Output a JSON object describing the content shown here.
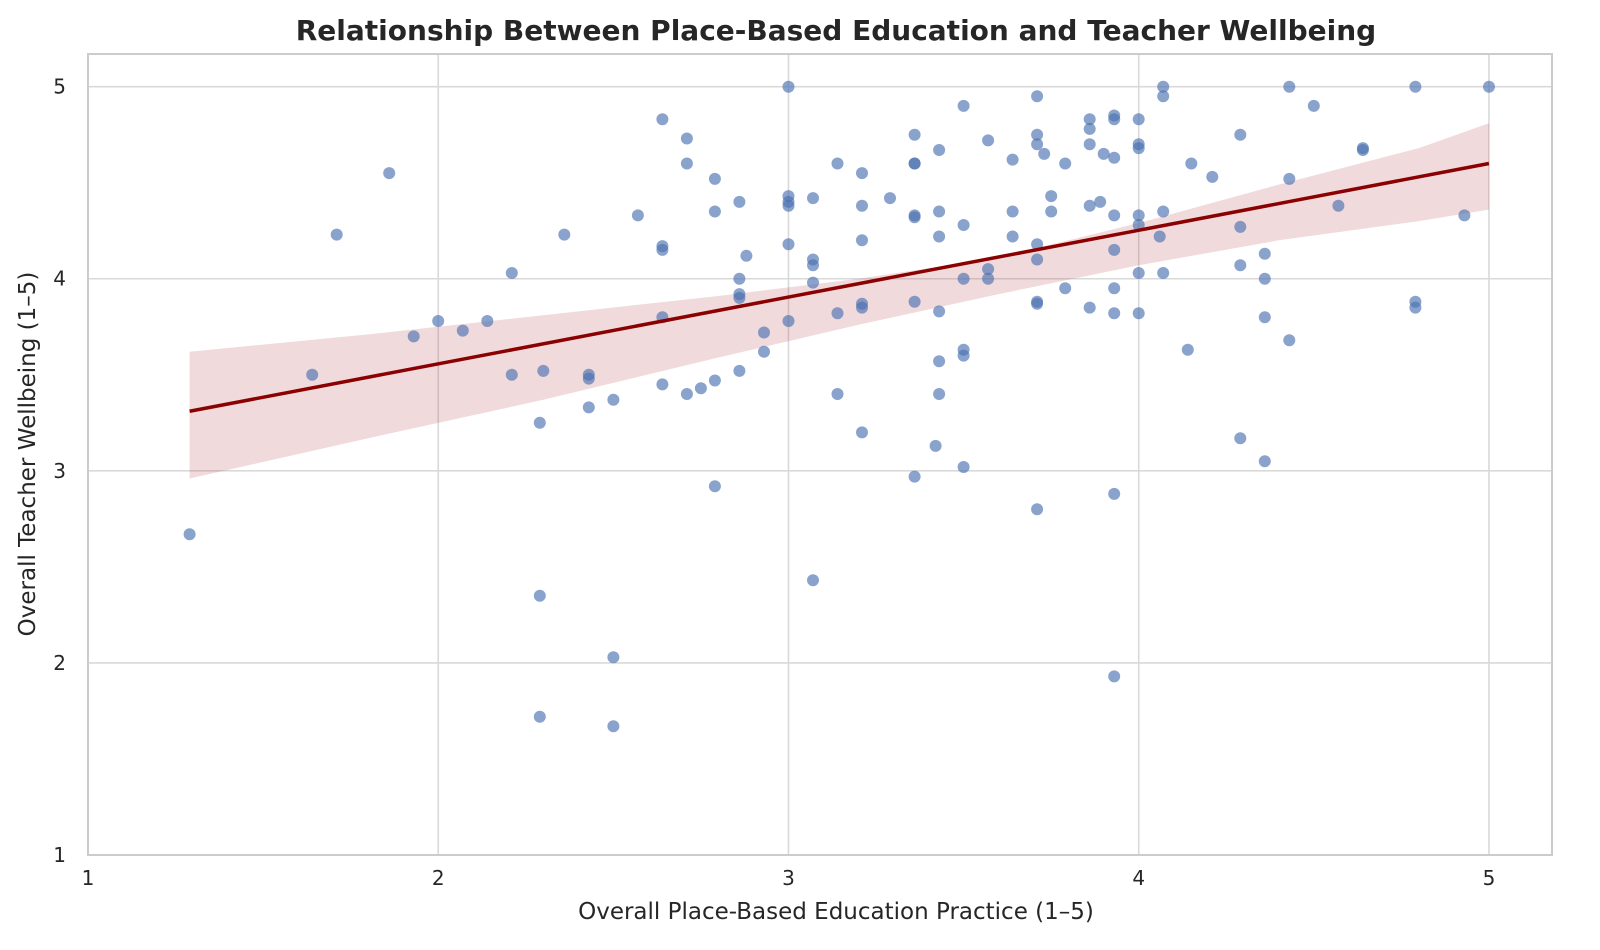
{
  "chart_data": {
    "type": "scatter",
    "title": "Relationship Between Place-Based Education and Teacher Wellbeing",
    "xlabel": "Overall Place-Based Education Practice (1–5)",
    "ylabel": "Overall Teacher Wellbeing (1–5)",
    "xlim": [
      1,
      5.18
    ],
    "ylim": [
      1,
      5.17
    ],
    "xticks": [
      "1",
      "2",
      "3",
      "4",
      "5"
    ],
    "yticks": [
      "1",
      "2",
      "3",
      "4",
      "5"
    ],
    "grid": true,
    "point_color": "#4c72b0",
    "line_color": "#8b0000",
    "band_color": "#b2474f",
    "points": [
      [
        1.29,
        2.67
      ],
      [
        1.64,
        3.5
      ],
      [
        1.71,
        4.23
      ],
      [
        1.86,
        4.55
      ],
      [
        1.93,
        3.7
      ],
      [
        2.0,
        3.78
      ],
      [
        2.07,
        3.73
      ],
      [
        2.14,
        3.78
      ],
      [
        2.21,
        4.03
      ],
      [
        2.21,
        3.5
      ],
      [
        2.29,
        3.25
      ],
      [
        2.29,
        2.35
      ],
      [
        2.29,
        1.72
      ],
      [
        2.3,
        3.52
      ],
      [
        2.36,
        4.23
      ],
      [
        2.43,
        3.5
      ],
      [
        2.43,
        3.48
      ],
      [
        2.43,
        3.33
      ],
      [
        2.5,
        3.37
      ],
      [
        2.5,
        2.03
      ],
      [
        2.5,
        1.67
      ],
      [
        2.57,
        4.33
      ],
      [
        2.64,
        4.83
      ],
      [
        2.64,
        4.17
      ],
      [
        2.64,
        4.15
      ],
      [
        2.64,
        3.8
      ],
      [
        2.64,
        3.45
      ],
      [
        2.71,
        4.73
      ],
      [
        2.71,
        4.6
      ],
      [
        2.71,
        3.4
      ],
      [
        2.75,
        3.43
      ],
      [
        2.79,
        4.52
      ],
      [
        2.79,
        4.35
      ],
      [
        2.79,
        3.47
      ],
      [
        2.79,
        2.92
      ],
      [
        2.86,
        4.4
      ],
      [
        2.86,
        4.0
      ],
      [
        2.86,
        3.92
      ],
      [
        2.86,
        3.9
      ],
      [
        2.86,
        3.52
      ],
      [
        2.88,
        4.12
      ],
      [
        2.93,
        3.72
      ],
      [
        2.93,
        3.62
      ],
      [
        3.0,
        5.0
      ],
      [
        3.0,
        4.43
      ],
      [
        3.0,
        4.4
      ],
      [
        3.0,
        4.38
      ],
      [
        3.0,
        4.18
      ],
      [
        3.0,
        3.78
      ],
      [
        3.07,
        4.42
      ],
      [
        3.07,
        4.1
      ],
      [
        3.07,
        4.07
      ],
      [
        3.07,
        3.98
      ],
      [
        3.07,
        2.43
      ],
      [
        3.14,
        4.6
      ],
      [
        3.14,
        3.82
      ],
      [
        3.14,
        3.4
      ],
      [
        3.21,
        4.55
      ],
      [
        3.21,
        4.38
      ],
      [
        3.21,
        4.2
      ],
      [
        3.21,
        3.87
      ],
      [
        3.21,
        3.85
      ],
      [
        3.21,
        3.2
      ],
      [
        3.29,
        4.42
      ],
      [
        3.36,
        4.75
      ],
      [
        3.36,
        4.6
      ],
      [
        3.36,
        4.6
      ],
      [
        3.36,
        4.33
      ],
      [
        3.36,
        4.32
      ],
      [
        3.36,
        3.88
      ],
      [
        3.36,
        2.97
      ],
      [
        3.42,
        3.13
      ],
      [
        3.43,
        4.67
      ],
      [
        3.43,
        4.35
      ],
      [
        3.43,
        4.22
      ],
      [
        3.43,
        3.83
      ],
      [
        3.43,
        3.57
      ],
      [
        3.43,
        3.4
      ],
      [
        3.5,
        4.9
      ],
      [
        3.5,
        4.28
      ],
      [
        3.5,
        4.0
      ],
      [
        3.5,
        3.63
      ],
      [
        3.5,
        3.6
      ],
      [
        3.5,
        3.02
      ],
      [
        3.57,
        4.72
      ],
      [
        3.57,
        4.05
      ],
      [
        3.57,
        4.0
      ],
      [
        3.64,
        4.62
      ],
      [
        3.64,
        4.35
      ],
      [
        3.64,
        4.22
      ],
      [
        3.71,
        4.95
      ],
      [
        3.71,
        4.75
      ],
      [
        3.71,
        4.7
      ],
      [
        3.71,
        4.18
      ],
      [
        3.71,
        4.1
      ],
      [
        3.71,
        3.88
      ],
      [
        3.71,
        3.87
      ],
      [
        3.71,
        2.8
      ],
      [
        3.73,
        4.65
      ],
      [
        3.75,
        4.43
      ],
      [
        3.75,
        4.35
      ],
      [
        3.79,
        4.6
      ],
      [
        3.79,
        3.95
      ],
      [
        3.86,
        4.83
      ],
      [
        3.86,
        4.78
      ],
      [
        3.86,
        4.7
      ],
      [
        3.86,
        4.38
      ],
      [
        3.86,
        3.85
      ],
      [
        3.89,
        4.4
      ],
      [
        3.9,
        4.65
      ],
      [
        3.93,
        4.85
      ],
      [
        3.93,
        4.83
      ],
      [
        3.93,
        4.63
      ],
      [
        3.93,
        4.33
      ],
      [
        3.93,
        4.15
      ],
      [
        3.93,
        3.95
      ],
      [
        3.93,
        3.82
      ],
      [
        3.93,
        2.88
      ],
      [
        3.93,
        1.93
      ],
      [
        4.0,
        4.83
      ],
      [
        4.0,
        4.7
      ],
      [
        4.0,
        4.68
      ],
      [
        4.0,
        4.33
      ],
      [
        4.0,
        4.28
      ],
      [
        4.0,
        4.03
      ],
      [
        4.0,
        3.82
      ],
      [
        4.06,
        4.22
      ],
      [
        4.07,
        5.0
      ],
      [
        4.07,
        4.95
      ],
      [
        4.07,
        4.35
      ],
      [
        4.07,
        4.03
      ],
      [
        4.14,
        3.63
      ],
      [
        4.15,
        4.6
      ],
      [
        4.21,
        4.53
      ],
      [
        4.29,
        4.75
      ],
      [
        4.29,
        4.27
      ],
      [
        4.29,
        4.07
      ],
      [
        4.29,
        3.17
      ],
      [
        4.36,
        4.13
      ],
      [
        4.36,
        4.0
      ],
      [
        4.36,
        3.8
      ],
      [
        4.36,
        3.05
      ],
      [
        4.43,
        5.0
      ],
      [
        4.43,
        4.52
      ],
      [
        4.43,
        3.68
      ],
      [
        4.5,
        4.9
      ],
      [
        4.57,
        4.38
      ],
      [
        4.64,
        4.68
      ],
      [
        4.64,
        4.67
      ],
      [
        4.79,
        5.0
      ],
      [
        4.79,
        3.88
      ],
      [
        4.79,
        3.85
      ],
      [
        4.93,
        4.33
      ],
      [
        5.0,
        5.0
      ]
    ],
    "regression": {
      "x": [
        1.29,
        5.0
      ],
      "y": [
        3.31,
        4.6
      ]
    },
    "ci_band": {
      "x": [
        1.29,
        1.8,
        2.3,
        2.8,
        3.2,
        3.6,
        4.0,
        4.4,
        4.8,
        5.0
      ],
      "lower": [
        2.96,
        3.17,
        3.37,
        3.59,
        3.76,
        3.92,
        4.07,
        4.2,
        4.3,
        4.36
      ],
      "upper": [
        3.62,
        3.71,
        3.81,
        3.91,
        4.0,
        4.11,
        4.29,
        4.49,
        4.68,
        4.81
      ]
    }
  }
}
